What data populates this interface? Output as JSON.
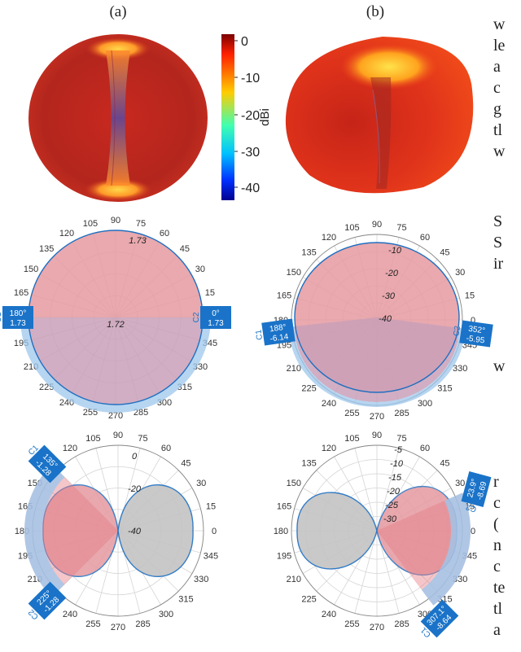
{
  "panel_labels": [
    "(a)",
    "(b)"
  ],
  "colorbar": {
    "label": "dBi",
    "ticks": [
      "0",
      "-10",
      "-20",
      "-30",
      "-40"
    ],
    "colors": [
      "#ff0000",
      "#ffff00",
      "#00ffff",
      "#0000ff",
      "#000080"
    ]
  },
  "angle_labels": [
    "0",
    "15",
    "30",
    "45",
    "60",
    "75",
    "90",
    "105",
    "120",
    "135",
    "150",
    "165",
    "180",
    "195",
    "210",
    "225",
    "240",
    "255",
    "270",
    "285",
    "300",
    "315",
    "330",
    "345"
  ],
  "cursors": {
    "a_mid_c1": {
      "name": "C1",
      "angle": "180°",
      "value": "1.73"
    },
    "a_mid_c2": {
      "name": "C2",
      "angle": "0°",
      "value": "1.73"
    },
    "a_mid_center": "1.72",
    "a_mid_radial": [
      "1.73"
    ],
    "b_mid_c1": {
      "name": "C1",
      "angle": "188°",
      "value": "-6.14"
    },
    "b_mid_c2": {
      "name": "C2",
      "angle": "352°",
      "value": "-5.95"
    },
    "b_mid_radial": [
      "-10",
      "-20",
      "-30",
      "-40"
    ],
    "a_bot_c1": {
      "name": "C1",
      "angle": "135°",
      "value": "-1.28"
    },
    "a_bot_c2": {
      "name": "C2",
      "angle": "225°",
      "value": "-1.28"
    },
    "a_bot_radial": [
      "0",
      "-20",
      "-40"
    ],
    "b_bot_c1": {
      "name": "C1",
      "angle": "307.1°",
      "value": "-8.64"
    },
    "b_bot_c2": {
      "name": "C2",
      "angle": "23.9°",
      "value": "-8.69"
    },
    "b_bot_radial": [
      "-5",
      "-10",
      "-15",
      "-20",
      "-25",
      "-30"
    ]
  },
  "side_text": {
    "block1": [
      "w",
      "le",
      "a",
      "c",
      "g",
      "tl",
      "w"
    ],
    "block2": [
      "S",
      "S",
      "ir"
    ],
    "block3": [
      "w"
    ],
    "block4": [
      "r",
      "c",
      "(",
      "n",
      "c",
      "te",
      "tl",
      "a"
    ]
  }
}
